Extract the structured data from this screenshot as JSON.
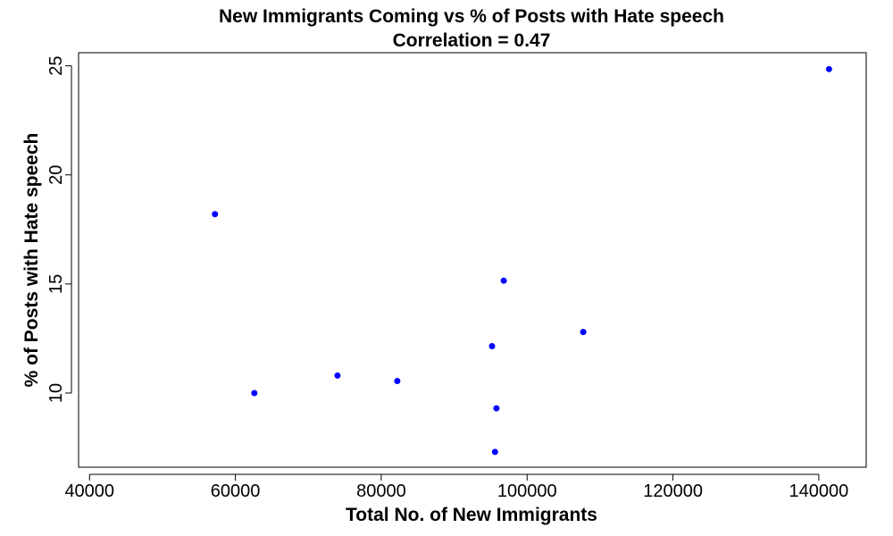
{
  "chart_data": {
    "type": "scatter",
    "title": "New Immigrants Coming vs % of Posts with Hate speech",
    "subtitle": "Correlation =  0.47",
    "xlabel": "Total No. of New Immigrants",
    "ylabel": "% of Posts with Hate speech",
    "xlim": [
      38500,
      146500
    ],
    "ylim": [
      6.6,
      25.6
    ],
    "xticks": [
      40000,
      60000,
      80000,
      100000,
      120000,
      140000
    ],
    "xtick_labels": [
      "40000",
      "60000",
      "80000",
      "100000",
      "120000",
      "140000"
    ],
    "yticks": [
      10,
      15,
      20,
      25
    ],
    "ytick_labels": [
      "10",
      "15",
      "20",
      "25"
    ],
    "grid": false,
    "legend": "none",
    "point_color": "#0000ff",
    "points": [
      {
        "x": 57200,
        "y": 18.2
      },
      {
        "x": 62600,
        "y": 10.0
      },
      {
        "x": 74000,
        "y": 10.8
      },
      {
        "x": 82200,
        "y": 10.55
      },
      {
        "x": 95200,
        "y": 12.15
      },
      {
        "x": 95600,
        "y": 7.3
      },
      {
        "x": 95800,
        "y": 9.3
      },
      {
        "x": 96800,
        "y": 15.15
      },
      {
        "x": 107700,
        "y": 12.8
      },
      {
        "x": 141400,
        "y": 24.85
      }
    ]
  }
}
